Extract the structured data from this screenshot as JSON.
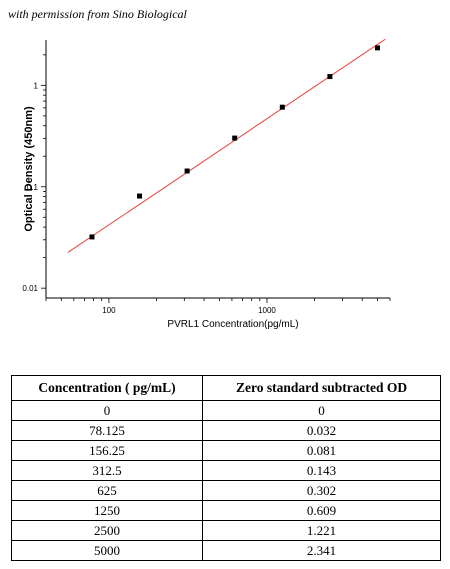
{
  "caption": "with permission from Sino Biological",
  "chart_data": {
    "type": "scatter",
    "xlabel": "PVRL1  Concentration(pg/mL)",
    "ylabel": "Optical Density (450nm)",
    "x_scale": "log",
    "y_scale": "log",
    "xlim": [
      40,
      6000
    ],
    "ylim": [
      0.008,
      2.8
    ],
    "x_ticks": [
      100,
      1000
    ],
    "x_tick_labels": [
      "100",
      "1000"
    ],
    "y_ticks": [
      0.01,
      0.1,
      1
    ],
    "y_tick_labels": [
      "0.01",
      "0.1",
      "1"
    ],
    "series": [
      {
        "x": [
          78.125,
          156.25,
          312.5,
          625,
          1250,
          2500,
          5000
        ],
        "y": [
          0.032,
          0.081,
          0.143,
          0.302,
          0.609,
          1.221,
          2.341
        ]
      }
    ],
    "fit_line": {
      "x": [
        55,
        5600
      ],
      "y": [
        0.0225,
        2.85
      ],
      "color": "#e8453c"
    },
    "grid": false,
    "legend": "none"
  },
  "table": {
    "headers": [
      "Concentration ( pg/mL)",
      "Zero standard subtracted OD"
    ],
    "rows": [
      [
        "0",
        "0"
      ],
      [
        "78.125",
        "0.032"
      ],
      [
        "156.25",
        "0.081"
      ],
      [
        "312.5",
        "0.143"
      ],
      [
        "625",
        "0.302"
      ],
      [
        "1250",
        "0.609"
      ],
      [
        "2500",
        "1.221"
      ],
      [
        "5000",
        "2.341"
      ]
    ]
  }
}
